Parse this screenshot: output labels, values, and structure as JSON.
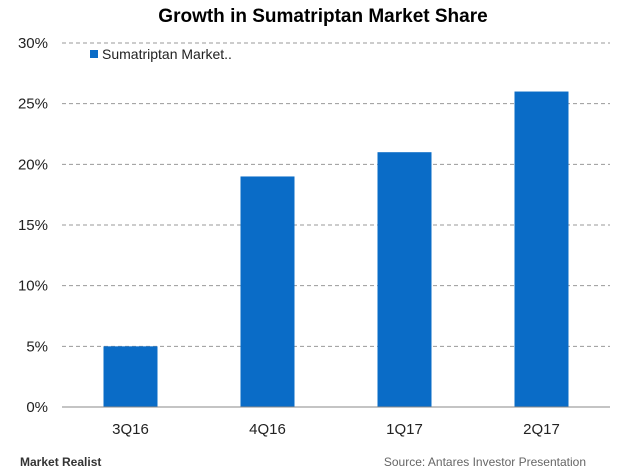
{
  "chart_data": {
    "type": "bar",
    "title": "Growth in Sumatriptan Market Share",
    "categories": [
      "3Q16",
      "4Q16",
      "1Q17",
      "2Q17"
    ],
    "series": [
      {
        "name": "Sumatriptan Market..",
        "values": [
          5,
          19,
          21,
          26
        ],
        "color": "#0a6cc7"
      }
    ],
    "ylim": [
      0,
      30
    ],
    "yticks": [
      0,
      5,
      10,
      15,
      20,
      25,
      30
    ],
    "ytick_labels": [
      "0%",
      "5%",
      "10%",
      "15%",
      "20%",
      "25%",
      "30%"
    ],
    "grid": true,
    "legend_position": "top-left"
  },
  "source_text": "Source: Antares Investor Presentation",
  "brand_text": "Market Realist"
}
